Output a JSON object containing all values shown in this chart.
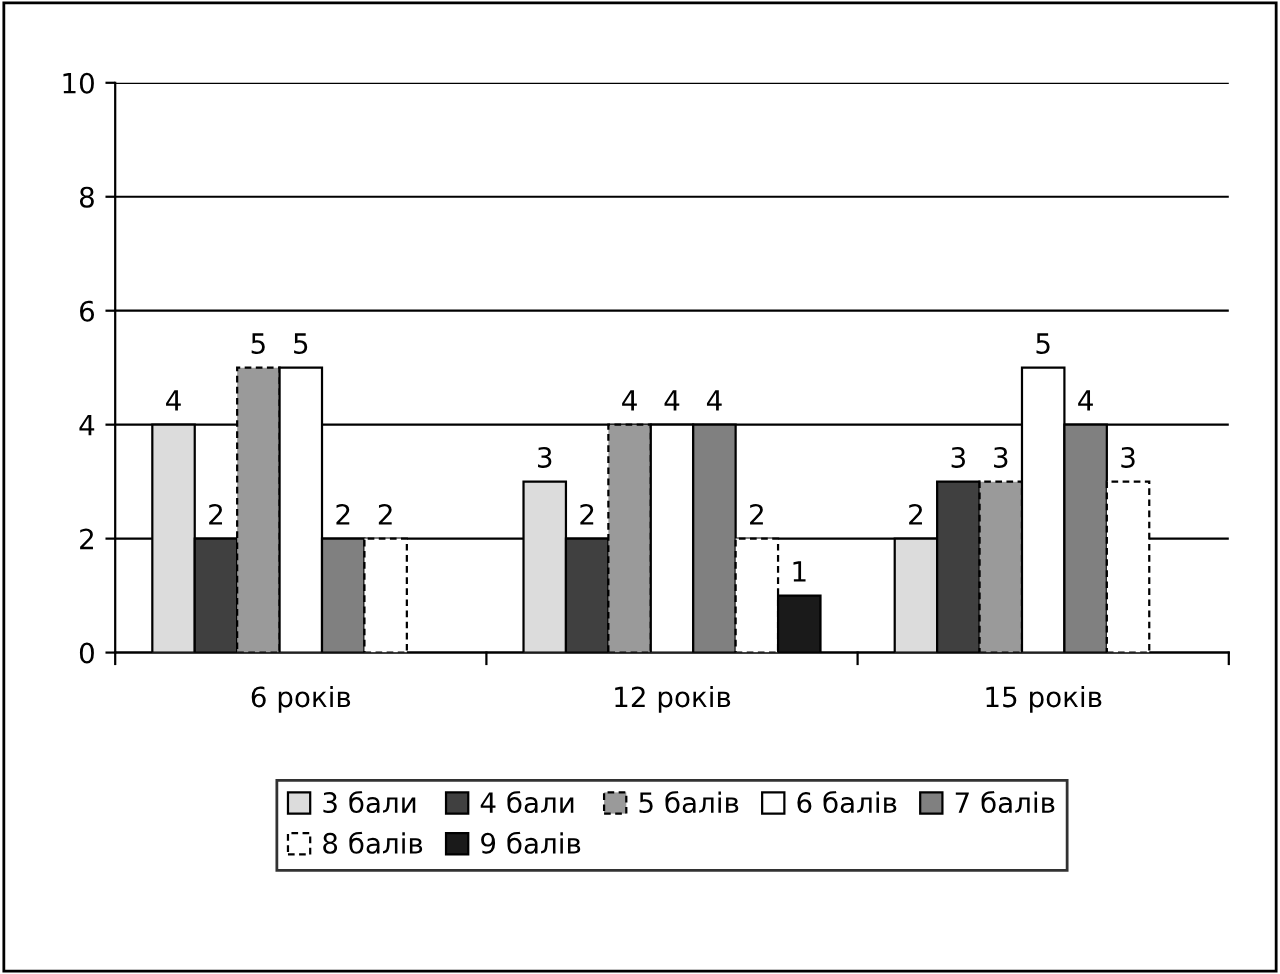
{
  "chart_data": {
    "type": "bar",
    "categories": [
      "6 років",
      "12 років",
      "15 років"
    ],
    "series": [
      {
        "name": "3 бали",
        "color": "#dcdcdc",
        "values": [
          4,
          3,
          2
        ]
      },
      {
        "name": "4 бали",
        "color": "#404040",
        "values": [
          2,
          2,
          3
        ]
      },
      {
        "name": "5 балів",
        "color": "#9a9a9a",
        "values": [
          5,
          4,
          3
        ],
        "line_style": "dashed"
      },
      {
        "name": "6 балів",
        "color": "#ffffff",
        "values": [
          5,
          4,
          5
        ]
      },
      {
        "name": "7 балів",
        "color": "#808080",
        "values": [
          2,
          4,
          4
        ]
      },
      {
        "name": "8 балів",
        "color": "#ffffff",
        "values": [
          2,
          2,
          3
        ],
        "line_style": "dashed"
      },
      {
        "name": "9 балів",
        "color": "#1a1a1a",
        "values": [
          null,
          1,
          null
        ]
      }
    ],
    "ylim": [
      0,
      10
    ],
    "yticks": [
      0,
      2,
      4,
      6,
      8,
      10
    ],
    "grid": "y",
    "legend": "bottom",
    "data_labels": true
  }
}
